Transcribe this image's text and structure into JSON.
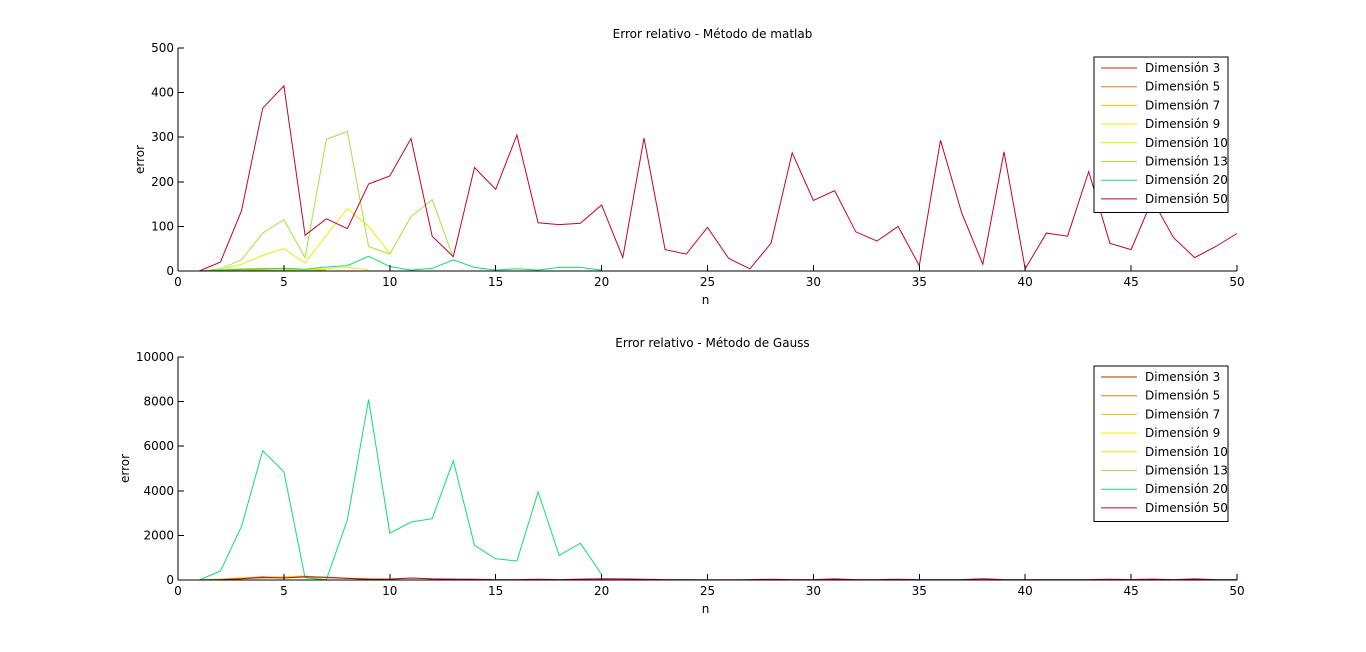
{
  "chart_data": [
    {
      "type": "line",
      "title": "Error relativo - Método de matlab",
      "xlabel": "n",
      "ylabel": "error",
      "xlim": [
        0,
        50
      ],
      "ylim": [
        0,
        500
      ],
      "xticks": [
        0,
        5,
        10,
        15,
        20,
        25,
        30,
        35,
        40,
        45,
        50
      ],
      "yticks": [
        0,
        100,
        200,
        300,
        400,
        500
      ],
      "legend_position": "top-right",
      "grid": false,
      "series": [
        {
          "name": "Dimensión 3",
          "color": "#d62100",
          "x": [
            1,
            2,
            3
          ],
          "y": [
            0,
            0.5,
            1
          ]
        },
        {
          "name": "Dimensión 5",
          "color": "#d88000",
          "x": [
            1,
            2,
            3,
            4,
            5
          ],
          "y": [
            0,
            0.5,
            1,
            2,
            1
          ]
        },
        {
          "name": "Dimensión 7",
          "color": "#e3c200",
          "x": [
            1,
            2,
            3,
            4,
            5,
            6,
            7
          ],
          "y": [
            0,
            1,
            2,
            3,
            2,
            3,
            2
          ]
        },
        {
          "name": "Dimensión 9",
          "color": "#f2f000",
          "x": [
            1,
            2,
            3,
            4,
            5,
            6,
            7,
            8,
            9
          ],
          "y": [
            0,
            2,
            5,
            6,
            5,
            3,
            5,
            8,
            3
          ]
        },
        {
          "name": "Dimensión 10",
          "color": "#ecec00",
          "x": [
            1,
            2,
            3,
            4,
            5,
            6,
            7,
            8,
            9,
            10
          ],
          "y": [
            0,
            3,
            15,
            35,
            50,
            18,
            80,
            140,
            100,
            40
          ]
        },
        {
          "name": "Dimensión 13",
          "color": "#a6e23a",
          "x": [
            1,
            2,
            3,
            4,
            5,
            6,
            7,
            8,
            9,
            10,
            11,
            12,
            13
          ],
          "y": [
            0,
            5,
            25,
            85,
            115,
            30,
            295,
            313,
            55,
            38,
            122,
            160,
            30
          ]
        },
        {
          "name": "Dimensión 20",
          "color": "#10e06a",
          "x": [
            1,
            2,
            3,
            4,
            5,
            6,
            7,
            8,
            9,
            10,
            11,
            12,
            13,
            14,
            15,
            16,
            17,
            18,
            19,
            20
          ],
          "y": [
            0,
            2,
            4,
            5,
            6,
            4,
            9,
            12,
            33,
            10,
            2,
            6,
            25,
            8,
            2,
            5,
            2,
            8,
            8,
            2
          ]
        },
        {
          "name": "Dimensión 50",
          "color": "#c80030",
          "x": [
            1,
            2,
            3,
            4,
            5,
            6,
            7,
            8,
            9,
            10,
            11,
            12,
            13,
            14,
            15,
            16,
            17,
            18,
            19,
            20,
            21,
            22,
            23,
            24,
            25,
            26,
            27,
            28,
            29,
            30,
            31,
            32,
            33,
            34,
            35,
            36,
            37,
            38,
            39,
            40,
            41,
            42,
            43,
            44,
            45,
            46,
            47,
            48,
            49,
            50
          ],
          "y": [
            0,
            20,
            135,
            365,
            415,
            80,
            117,
            95,
            195,
            213,
            297,
            78,
            32,
            232,
            183,
            305,
            108,
            104,
            107,
            148,
            30,
            298,
            48,
            38,
            98,
            28,
            5,
            62,
            265,
            158,
            180,
            88,
            67,
            100,
            12,
            293,
            130,
            15,
            267,
            5,
            85,
            78,
            223,
            62,
            48,
            160,
            75,
            30,
            55,
            84
          ]
        }
      ]
    },
    {
      "type": "line",
      "title": "Error relativo - Método de Gauss",
      "xlabel": "n",
      "ylabel": "error",
      "xlim": [
        0,
        50
      ],
      "ylim": [
        0,
        10000
      ],
      "xticks": [
        0,
        5,
        10,
        15,
        20,
        25,
        30,
        35,
        40,
        45,
        50
      ],
      "yticks": [
        0,
        2000,
        4000,
        6000,
        8000,
        10000
      ],
      "legend_position": "top-right",
      "grid": false,
      "series": [
        {
          "name": "Dimensión 3",
          "color": "#d62100",
          "x": [
            1,
            2,
            3
          ],
          "y": [
            0,
            20,
            40
          ]
        },
        {
          "name": "Dimensión 5",
          "color": "#d88000",
          "x": [
            1,
            2,
            3,
            4,
            5
          ],
          "y": [
            0,
            30,
            80,
            150,
            100
          ]
        },
        {
          "name": "Dimensión 7",
          "color": "#e3c200",
          "x": [
            1,
            2,
            3,
            4,
            5,
            6,
            7
          ],
          "y": [
            0,
            40,
            100,
            120,
            150,
            180,
            100
          ]
        },
        {
          "name": "Dimensión 9",
          "color": "#f2f000",
          "x": [
            1,
            2,
            3,
            4,
            5,
            6,
            7,
            8,
            9
          ],
          "y": [
            0,
            30,
            60,
            90,
            110,
            140,
            120,
            80,
            40
          ]
        },
        {
          "name": "Dimensión 10",
          "color": "#ecec00",
          "x": [
            1,
            2,
            3,
            4,
            5,
            6,
            7,
            8,
            9,
            10
          ],
          "y": [
            0,
            40,
            80,
            100,
            130,
            150,
            110,
            90,
            60,
            40
          ]
        },
        {
          "name": "Dimensión 13",
          "color": "#a6e23a",
          "x": [
            1,
            2,
            3,
            4,
            5,
            6,
            7,
            8,
            9,
            10,
            11,
            12,
            13
          ],
          "y": [
            0,
            30,
            60,
            80,
            100,
            120,
            90,
            70,
            60,
            50,
            90,
            60,
            40
          ]
        },
        {
          "name": "Dimensión 20",
          "color": "#10e06a",
          "x": [
            1,
            2,
            3,
            4,
            5,
            6,
            7,
            8,
            9,
            10,
            11,
            12,
            13,
            14,
            15,
            16,
            17,
            18,
            19,
            20
          ],
          "y": [
            0,
            400,
            2400,
            5800,
            4850,
            100,
            10,
            2700,
            8100,
            2100,
            2600,
            2750,
            5350,
            1550,
            950,
            850,
            3950,
            1100,
            1650,
            250
          ]
        },
        {
          "name": "Dimensión 50",
          "color": "#c80030",
          "x": [
            1,
            2,
            3,
            4,
            5,
            6,
            7,
            8,
            9,
            10,
            11,
            12,
            13,
            14,
            15,
            16,
            17,
            18,
            19,
            20,
            21,
            22,
            23,
            24,
            25,
            26,
            27,
            28,
            29,
            30,
            31,
            32,
            33,
            34,
            35,
            36,
            37,
            38,
            39,
            40,
            41,
            42,
            43,
            44,
            45,
            46,
            47,
            48,
            49,
            50
          ],
          "y": [
            0,
            20,
            60,
            120,
            90,
            150,
            120,
            70,
            40,
            30,
            90,
            50,
            40,
            30,
            20,
            20,
            30,
            20,
            40,
            60,
            50,
            30,
            20,
            20,
            10,
            10,
            20,
            30,
            20,
            20,
            50,
            20,
            20,
            30,
            20,
            20,
            20,
            60,
            20,
            20,
            20,
            20,
            20,
            30,
            20,
            40,
            20,
            50,
            20,
            20
          ]
        }
      ]
    }
  ]
}
